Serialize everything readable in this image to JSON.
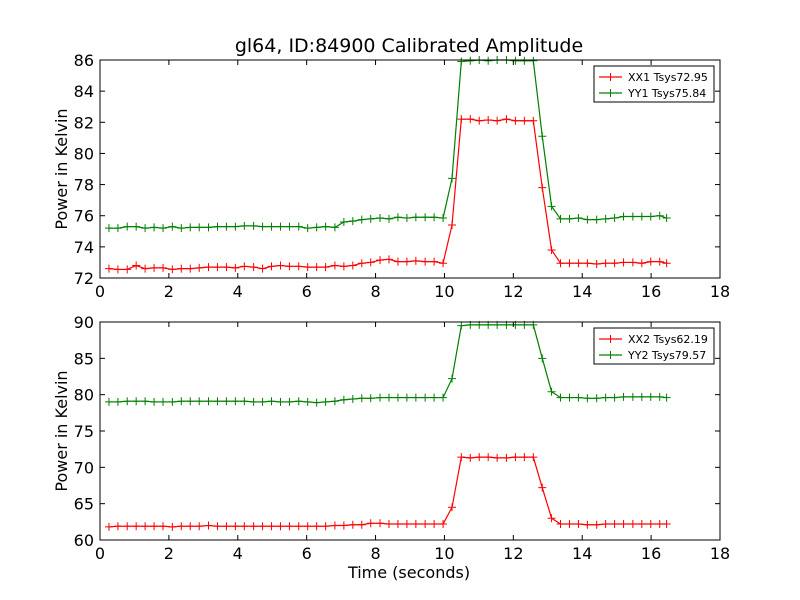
{
  "figure": {
    "title": "gl64, ID:84900 Calibrated Amplitude",
    "xlabel": "Time (seconds)"
  },
  "chart_data": [
    {
      "type": "line",
      "ylabel": "Power in Kelvin",
      "xlim": [
        0,
        18
      ],
      "ylim": [
        72,
        86
      ],
      "xticks": [
        0,
        2,
        4,
        6,
        8,
        10,
        12,
        14,
        16,
        18
      ],
      "yticks": [
        72,
        74,
        76,
        78,
        80,
        82,
        84,
        86
      ],
      "xtick_labels": [
        "0",
        "2",
        "4",
        "6",
        "8",
        "10",
        "12",
        "14",
        "16",
        "18"
      ],
      "ytick_labels": [
        "72",
        "74",
        "76",
        "78",
        "80",
        "82",
        "84",
        "86"
      ],
      "grid": false,
      "legend_position": "top-right",
      "x": [
        0.26,
        0.52,
        0.79,
        1.05,
        1.31,
        1.57,
        1.83,
        2.1,
        2.36,
        2.62,
        2.88,
        3.15,
        3.41,
        3.67,
        3.93,
        4.19,
        4.46,
        4.72,
        4.98,
        5.24,
        5.5,
        5.77,
        6.03,
        6.29,
        6.55,
        6.82,
        7.08,
        7.34,
        7.6,
        7.86,
        8.13,
        8.39,
        8.65,
        8.91,
        9.17,
        9.44,
        9.7,
        9.96,
        10.22,
        10.49,
        10.75,
        11.01,
        11.27,
        11.53,
        11.8,
        12.06,
        12.32,
        12.58,
        12.84,
        13.11,
        13.37,
        13.63,
        13.89,
        14.15,
        14.42,
        14.68,
        14.94,
        15.2,
        15.47,
        15.73,
        15.99,
        16.25,
        16.45
      ],
      "series": [
        {
          "name": "XX1 Tsys72.95",
          "color": "#ff0000",
          "values": [
            72.6,
            72.55,
            72.55,
            72.8,
            72.6,
            72.65,
            72.65,
            72.55,
            72.6,
            72.6,
            72.65,
            72.7,
            72.7,
            72.7,
            72.65,
            72.75,
            72.7,
            72.6,
            72.75,
            72.8,
            72.75,
            72.75,
            72.7,
            72.7,
            72.7,
            72.8,
            72.75,
            72.8,
            72.95,
            73.0,
            73.15,
            73.2,
            73.05,
            73.05,
            73.1,
            73.05,
            73.05,
            72.95,
            75.4,
            82.2,
            82.2,
            82.1,
            82.15,
            82.1,
            82.2,
            82.1,
            82.1,
            82.1,
            77.8,
            73.8,
            72.95,
            72.95,
            72.95,
            72.95,
            72.9,
            72.95,
            72.95,
            73.0,
            73.0,
            72.95,
            73.05,
            73.05,
            72.95
          ]
        },
        {
          "name": "YY1 Tsys75.84",
          "color": "#008000",
          "values": [
            75.2,
            75.2,
            75.3,
            75.3,
            75.2,
            75.25,
            75.2,
            75.3,
            75.2,
            75.25,
            75.25,
            75.25,
            75.3,
            75.3,
            75.3,
            75.35,
            75.35,
            75.3,
            75.3,
            75.3,
            75.3,
            75.3,
            75.2,
            75.25,
            75.3,
            75.25,
            75.6,
            75.65,
            75.75,
            75.8,
            75.85,
            75.8,
            75.9,
            75.85,
            75.9,
            75.9,
            75.9,
            75.85,
            78.4,
            85.9,
            85.95,
            86.0,
            85.95,
            86.0,
            86.0,
            85.95,
            85.95,
            85.95,
            81.1,
            76.6,
            75.8,
            75.8,
            75.85,
            75.75,
            75.75,
            75.8,
            75.85,
            75.95,
            75.95,
            75.95,
            75.95,
            76.0,
            75.85
          ]
        }
      ]
    },
    {
      "type": "line",
      "ylabel": "Power in Kelvin",
      "xlabel": "Time (seconds)",
      "xlim": [
        0,
        18
      ],
      "ylim": [
        60,
        90
      ],
      "xticks": [
        0,
        2,
        4,
        6,
        8,
        10,
        12,
        14,
        16,
        18
      ],
      "yticks": [
        60,
        65,
        70,
        75,
        80,
        85,
        90
      ],
      "xtick_labels": [
        "0",
        "2",
        "4",
        "6",
        "8",
        "10",
        "12",
        "14",
        "16",
        "18"
      ],
      "ytick_labels": [
        "60",
        "65",
        "70",
        "75",
        "80",
        "85",
        "90"
      ],
      "grid": false,
      "legend_position": "top-right",
      "x": [
        0.26,
        0.52,
        0.79,
        1.05,
        1.31,
        1.57,
        1.83,
        2.1,
        2.36,
        2.62,
        2.88,
        3.15,
        3.41,
        3.67,
        3.93,
        4.19,
        4.46,
        4.72,
        4.98,
        5.24,
        5.5,
        5.77,
        6.03,
        6.29,
        6.55,
        6.82,
        7.08,
        7.34,
        7.6,
        7.86,
        8.13,
        8.39,
        8.65,
        8.91,
        9.17,
        9.44,
        9.7,
        9.96,
        10.22,
        10.49,
        10.75,
        11.01,
        11.27,
        11.53,
        11.8,
        12.06,
        12.32,
        12.58,
        12.84,
        13.11,
        13.37,
        13.63,
        13.89,
        14.15,
        14.42,
        14.68,
        14.94,
        15.2,
        15.47,
        15.73,
        15.99,
        16.25,
        16.45
      ],
      "series": [
        {
          "name": "XX2 Tsys62.19",
          "color": "#ff0000",
          "values": [
            61.8,
            61.9,
            61.9,
            61.9,
            61.9,
            61.9,
            61.9,
            61.8,
            61.9,
            61.9,
            61.9,
            62.0,
            61.9,
            61.9,
            61.9,
            61.9,
            61.9,
            61.9,
            61.9,
            61.9,
            61.9,
            61.9,
            61.9,
            61.9,
            61.9,
            62.0,
            62.0,
            62.1,
            62.1,
            62.3,
            62.3,
            62.2,
            62.2,
            62.2,
            62.2,
            62.2,
            62.2,
            62.2,
            64.5,
            71.4,
            71.3,
            71.4,
            71.4,
            71.3,
            71.3,
            71.4,
            71.4,
            71.4,
            67.2,
            63.0,
            62.2,
            62.2,
            62.2,
            62.1,
            62.1,
            62.2,
            62.2,
            62.2,
            62.2,
            62.2,
            62.2,
            62.2,
            62.2
          ]
        },
        {
          "name": "YY2 Tsys79.57",
          "color": "#008000",
          "values": [
            79.0,
            79.0,
            79.1,
            79.1,
            79.1,
            79.0,
            79.0,
            79.0,
            79.1,
            79.1,
            79.1,
            79.1,
            79.1,
            79.1,
            79.1,
            79.1,
            79.0,
            79.0,
            79.1,
            79.0,
            79.0,
            79.1,
            79.0,
            78.9,
            79.0,
            79.1,
            79.3,
            79.4,
            79.5,
            79.5,
            79.6,
            79.6,
            79.6,
            79.6,
            79.6,
            79.6,
            79.6,
            79.6,
            82.2,
            89.5,
            89.6,
            89.6,
            89.6,
            89.6,
            89.6,
            89.6,
            89.6,
            89.6,
            85.0,
            80.4,
            79.6,
            79.6,
            79.6,
            79.5,
            79.5,
            79.6,
            79.6,
            79.7,
            79.7,
            79.7,
            79.7,
            79.7,
            79.6
          ]
        }
      ]
    }
  ]
}
